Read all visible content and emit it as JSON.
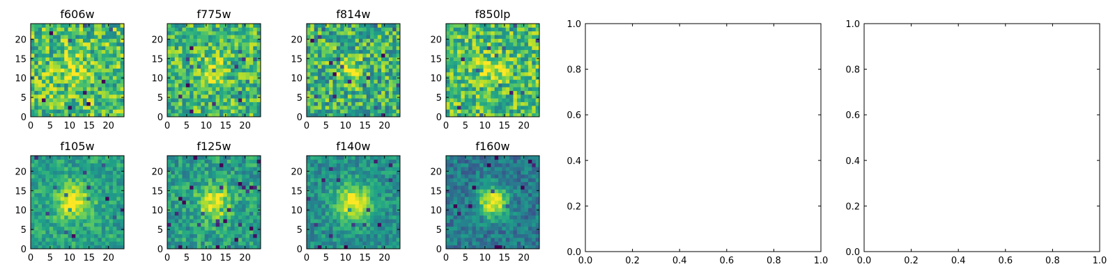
{
  "chart_data": [
    {
      "type": "heatmap",
      "title": "f606w",
      "colormap": "viridis",
      "xlim": [
        0,
        24
      ],
      "ylim": [
        0,
        24
      ],
      "x_ticks": [
        "0",
        "5",
        "10",
        "15",
        "20"
      ],
      "y_ticks": [
        "0",
        "5",
        "10",
        "15",
        "20"
      ],
      "image": "noisy cutout, faint central source, roughly uniform background"
    },
    {
      "type": "heatmap",
      "title": "f775w",
      "colormap": "viridis",
      "xlim": [
        0,
        24
      ],
      "ylim": [
        0,
        24
      ],
      "x_ticks": [
        "0",
        "5",
        "10",
        "15",
        "20"
      ],
      "y_ticks": [
        "0",
        "5",
        "10",
        "15",
        "20"
      ],
      "image": "noisy cutout, faint central source near (11, 12)"
    },
    {
      "type": "heatmap",
      "title": "f814w",
      "colormap": "viridis",
      "xlim": [
        0,
        24
      ],
      "ylim": [
        0,
        24
      ],
      "x_ticks": [
        "0",
        "5",
        "10",
        "15",
        "20"
      ],
      "y_ticks": [
        "0",
        "5",
        "10",
        "15",
        "20"
      ],
      "image": "noisy cutout, compact bright source near (11, 12)"
    },
    {
      "type": "heatmap",
      "title": "f850lp",
      "colormap": "viridis",
      "xlim": [
        0,
        24
      ],
      "ylim": [
        0,
        24
      ],
      "x_ticks": [
        "0",
        "5",
        "10",
        "15",
        "20"
      ],
      "y_ticks": [
        "0",
        "5",
        "10",
        "15",
        "20"
      ],
      "image": "noisy cutout, faint central source near (12, 12)"
    },
    {
      "type": "heatmap",
      "title": "f105w",
      "colormap": "viridis",
      "xlim": [
        0,
        24
      ],
      "ylim": [
        0,
        24
      ],
      "x_ticks": [
        "0",
        "5",
        "10",
        "15",
        "20"
      ],
      "y_ticks": [
        "0",
        "5",
        "10",
        "15",
        "20"
      ],
      "image": "smooth background, bright centered source near (11, 12)"
    },
    {
      "type": "heatmap",
      "title": "f125w",
      "colormap": "viridis",
      "xlim": [
        0,
        24
      ],
      "ylim": [
        0,
        24
      ],
      "x_ticks": [
        "0",
        "5",
        "10",
        "15",
        "20"
      ],
      "y_ticks": [
        "0",
        "5",
        "10",
        "15",
        "20"
      ],
      "image": "bright centered source near (12, 12)"
    },
    {
      "type": "heatmap",
      "title": "f140w",
      "colormap": "viridis",
      "xlim": [
        0,
        24
      ],
      "ylim": [
        0,
        24
      ],
      "x_ticks": [
        "0",
        "5",
        "10",
        "15",
        "20"
      ],
      "y_ticks": [
        "0",
        "5",
        "10",
        "15",
        "20"
      ],
      "image": "bright centered source near (12, 12), extended"
    },
    {
      "type": "heatmap",
      "title": "f160w",
      "colormap": "viridis",
      "xlim": [
        0,
        24
      ],
      "ylim": [
        0,
        24
      ],
      "x_ticks": [
        "0",
        "5",
        "10",
        "15",
        "20"
      ],
      "y_ticks": [
        "0",
        "5",
        "10",
        "15",
        "20"
      ],
      "image": "bright compact source near (12, 12), dark background"
    },
    {
      "type": "scatter",
      "title": "",
      "xlim": [
        0.0,
        1.0
      ],
      "ylim": [
        0.0,
        1.0
      ],
      "x_ticks": [
        "0.0",
        "0.2",
        "0.4",
        "0.6",
        "0.8",
        "1.0"
      ],
      "y_ticks": [
        "0.0",
        "0.2",
        "0.4",
        "0.6",
        "0.8",
        "1.0"
      ],
      "series": []
    },
    {
      "type": "scatter",
      "title": "",
      "xlim": [
        0.0,
        1.0
      ],
      "ylim": [
        0.0,
        1.0
      ],
      "x_ticks": [
        "0.0",
        "0.2",
        "0.4",
        "0.6",
        "0.8",
        "1.0"
      ],
      "y_ticks": [
        "0.0",
        "0.2",
        "0.4",
        "0.6",
        "0.8",
        "1.0"
      ],
      "series": []
    }
  ]
}
